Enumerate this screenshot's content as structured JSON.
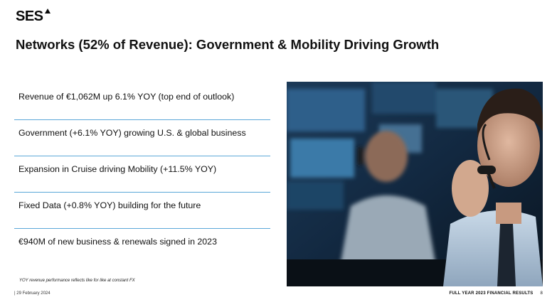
{
  "brand": {
    "logo_text": "SES"
  },
  "slide": {
    "title": "Networks (52% of Revenue): Government & Mobility Driving Growth",
    "bullets": [
      "Revenue of €1,062M up 6.1% YOY (top end of outlook)",
      "Government (+6.1% YOY) growing U.S. & global business",
      "Expansion in Cruise driving Mobility (+11.5% YOY)",
      " Fixed Data (+0.8% YOY) building for the future",
      "€940M of new business & renewals signed in 2023"
    ],
    "footnote": "YOY revenue performance reflects like for like at constant FX"
  },
  "footer": {
    "date": "| 29 February 2024",
    "section": "FULL YEAR 2023 FINANCIAL RESULTS",
    "page": "8"
  },
  "colors": {
    "divider": "#5aa7d8",
    "text": "#111111",
    "photo_base": "#0c1a29"
  }
}
